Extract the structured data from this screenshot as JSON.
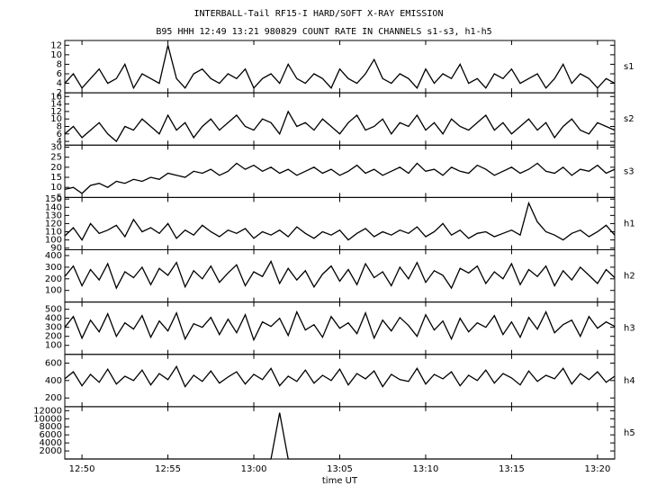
{
  "chart_data": [
    {
      "type": "line",
      "title": "INTERBALL-Tail RF15-I HARD/SOFT X-RAY EMISSION",
      "subtitle": "B95 HHH 12:49 13:21 980829  COUNT RATE IN CHANNELS s1-s3, h1-h5",
      "label": "s1",
      "color": "#000000",
      "x": [
        49,
        49.5,
        50,
        50.5,
        51,
        51.5,
        52,
        52.5,
        53,
        53.5,
        54,
        54.5,
        55,
        55.5,
        56,
        56.5,
        57,
        57.5,
        58,
        58.5,
        59,
        59.5,
        60,
        60.5,
        61,
        61.5,
        62,
        62.5,
        63,
        63.5,
        64,
        64.5,
        65,
        65.5,
        66,
        66.5,
        67,
        67.5,
        68,
        68.5,
        69,
        69.5,
        70,
        70.5,
        71,
        71.5,
        72,
        72.5,
        73,
        73.5,
        74,
        74.5,
        75,
        75.5,
        76,
        76.5,
        77,
        77.5,
        78,
        78.5,
        79,
        79.5,
        80,
        80.5,
        81
      ],
      "values": [
        4,
        6,
        3,
        5,
        7,
        4,
        5,
        8,
        3,
        6,
        5,
        4,
        12,
        5,
        3,
        6,
        7,
        5,
        4,
        6,
        5,
        7,
        3,
        5,
        6,
        4,
        8,
        5,
        4,
        6,
        5,
        3,
        7,
        5,
        4,
        6,
        9,
        5,
        4,
        6,
        5,
        3,
        7,
        4,
        6,
        5,
        8,
        4,
        5,
        3,
        6,
        5,
        7,
        4,
        5,
        6,
        3,
        5,
        8,
        4,
        6,
        5,
        3,
        5,
        4
      ],
      "xlim": [
        49,
        81
      ],
      "ylim": [
        2,
        13
      ],
      "yticks": [
        2,
        4,
        6,
        8,
        10,
        12
      ]
    },
    {
      "type": "line",
      "label": "s2",
      "color": "#000000",
      "x": [
        49,
        49.5,
        50,
        50.5,
        51,
        51.5,
        52,
        52.5,
        53,
        53.5,
        54,
        54.5,
        55,
        55.5,
        56,
        56.5,
        57,
        57.5,
        58,
        58.5,
        59,
        59.5,
        60,
        60.5,
        61,
        61.5,
        62,
        62.5,
        63,
        63.5,
        64,
        64.5,
        65,
        65.5,
        66,
        66.5,
        67,
        67.5,
        68,
        68.5,
        69,
        69.5,
        70,
        70.5,
        71,
        71.5,
        72,
        72.5,
        73,
        73.5,
        74,
        74.5,
        75,
        75.5,
        76,
        76.5,
        77,
        77.5,
        78,
        78.5,
        79,
        79.5,
        80,
        80.5,
        81
      ],
      "values": [
        6,
        8,
        5,
        7,
        9,
        6,
        4,
        8,
        7,
        10,
        8,
        6,
        11,
        7,
        9,
        5,
        8,
        10,
        7,
        9,
        11,
        8,
        7,
        10,
        9,
        6,
        12,
        8,
        9,
        7,
        10,
        8,
        6,
        9,
        11,
        7,
        8,
        10,
        6,
        9,
        8,
        11,
        7,
        9,
        6,
        10,
        8,
        7,
        9,
        11,
        7,
        9,
        6,
        8,
        10,
        7,
        9,
        5,
        8,
        10,
        7,
        6,
        9,
        8,
        7
      ],
      "xlim": [
        49,
        81
      ],
      "ylim": [
        3,
        17
      ],
      "yticks": [
        4,
        6,
        8,
        10,
        12,
        14,
        16
      ]
    },
    {
      "type": "line",
      "label": "s3",
      "color": "#000000",
      "x": [
        49,
        49.5,
        50,
        50.5,
        51,
        51.5,
        52,
        52.5,
        53,
        53.5,
        54,
        54.5,
        55,
        55.5,
        56,
        56.5,
        57,
        57.5,
        58,
        58.5,
        59,
        59.5,
        60,
        60.5,
        61,
        61.5,
        62,
        62.5,
        63,
        63.5,
        64,
        64.5,
        65,
        65.5,
        66,
        66.5,
        67,
        67.5,
        68,
        68.5,
        69,
        69.5,
        70,
        70.5,
        71,
        71.5,
        72,
        72.5,
        73,
        73.5,
        74,
        74.5,
        75,
        75.5,
        76,
        76.5,
        77,
        77.5,
        78,
        78.5,
        79,
        79.5,
        80,
        80.5,
        81
      ],
      "values": [
        9,
        10,
        7,
        11,
        12,
        10,
        13,
        12,
        14,
        13,
        15,
        14,
        17,
        16,
        15,
        18,
        17,
        19,
        16,
        18,
        22,
        19,
        21,
        18,
        20,
        17,
        19,
        16,
        18,
        20,
        17,
        19,
        16,
        18,
        21,
        17,
        19,
        16,
        18,
        20,
        17,
        22,
        18,
        19,
        16,
        20,
        18,
        17,
        21,
        19,
        16,
        18,
        20,
        17,
        19,
        22,
        18,
        17,
        20,
        16,
        19,
        18,
        21,
        17,
        19
      ],
      "xlim": [
        49,
        81
      ],
      "ylim": [
        5,
        31
      ],
      "yticks": [
        5,
        10,
        15,
        20,
        25,
        30
      ]
    },
    {
      "type": "line",
      "label": "h1",
      "color": "#000000",
      "x": [
        49,
        49.5,
        50,
        50.5,
        51,
        51.5,
        52,
        52.5,
        53,
        53.5,
        54,
        54.5,
        55,
        55.5,
        56,
        56.5,
        57,
        57.5,
        58,
        58.5,
        59,
        59.5,
        60,
        60.5,
        61,
        61.5,
        62,
        62.5,
        63,
        63.5,
        64,
        64.5,
        65,
        65.5,
        66,
        66.5,
        67,
        67.5,
        68,
        68.5,
        69,
        69.5,
        70,
        70.5,
        71,
        71.5,
        72,
        72.5,
        73,
        73.5,
        74,
        74.5,
        75,
        75.5,
        76,
        76.5,
        77,
        77.5,
        78,
        78.5,
        79,
        79.5,
        80,
        80.5,
        81
      ],
      "values": [
        105,
        115,
        100,
        120,
        108,
        112,
        118,
        104,
        125,
        110,
        115,
        108,
        120,
        102,
        112,
        106,
        118,
        110,
        104,
        112,
        108,
        114,
        102,
        110,
        106,
        112,
        104,
        116,
        108,
        102,
        110,
        106,
        112,
        100,
        108,
        114,
        104,
        110,
        106,
        112,
        108,
        116,
        104,
        110,
        120,
        106,
        112,
        102,
        108,
        110,
        104,
        108,
        112,
        106,
        145,
        122,
        110,
        106,
        100,
        108,
        112,
        104,
        110,
        118,
        106
      ],
      "xlim": [
        49,
        81
      ],
      "ylim": [
        88,
        152
      ],
      "yticks": [
        90,
        100,
        110,
        120,
        130,
        140,
        150
      ]
    },
    {
      "type": "line",
      "label": "h2",
      "color": "#000000",
      "x": [
        49,
        49.5,
        50,
        50.5,
        51,
        51.5,
        52,
        52.5,
        53,
        53.5,
        54,
        54.5,
        55,
        55.5,
        56,
        56.5,
        57,
        57.5,
        58,
        58.5,
        59,
        59.5,
        60,
        60.5,
        61,
        61.5,
        62,
        62.5,
        63,
        63.5,
        64,
        64.5,
        65,
        65.5,
        66,
        66.5,
        67,
        67.5,
        68,
        68.5,
        69,
        69.5,
        70,
        70.5,
        71,
        71.5,
        72,
        72.5,
        73,
        73.5,
        74,
        74.5,
        75,
        75.5,
        76,
        76.5,
        77,
        77.5,
        78,
        78.5,
        79,
        79.5,
        80,
        80.5,
        81
      ],
      "values": [
        220,
        310,
        140,
        280,
        190,
        330,
        120,
        260,
        210,
        300,
        150,
        290,
        230,
        340,
        130,
        270,
        200,
        310,
        170,
        250,
        320,
        140,
        260,
        220,
        350,
        160,
        290,
        190,
        270,
        130,
        240,
        310,
        180,
        280,
        150,
        330,
        210,
        260,
        140,
        300,
        200,
        340,
        170,
        270,
        230,
        120,
        290,
        250,
        310,
        160,
        260,
        200,
        330,
        150,
        280,
        220,
        310,
        140,
        270,
        190,
        300,
        230,
        160,
        280,
        210
      ],
      "xlim": [
        49,
        81
      ],
      "ylim": [
        0,
        450
      ],
      "yticks": [
        100,
        200,
        300,
        400
      ]
    },
    {
      "type": "line",
      "label": "h3",
      "color": "#000000",
      "x": [
        49,
        49.5,
        50,
        50.5,
        51,
        51.5,
        52,
        52.5,
        53,
        53.5,
        54,
        54.5,
        55,
        55.5,
        56,
        56.5,
        57,
        57.5,
        58,
        58.5,
        59,
        59.5,
        60,
        60.5,
        61,
        61.5,
        62,
        62.5,
        63,
        63.5,
        64,
        64.5,
        65,
        65.5,
        66,
        66.5,
        67,
        67.5,
        68,
        68.5,
        69,
        69.5,
        70,
        70.5,
        71,
        71.5,
        72,
        72.5,
        73,
        73.5,
        74,
        74.5,
        75,
        75.5,
        76,
        76.5,
        77,
        77.5,
        78,
        78.5,
        79,
        79.5,
        80,
        80.5,
        81
      ],
      "values": [
        300,
        420,
        180,
        380,
        250,
        450,
        200,
        350,
        280,
        430,
        190,
        370,
        260,
        460,
        170,
        340,
        300,
        410,
        220,
        390,
        240,
        440,
        160,
        360,
        310,
        400,
        210,
        470,
        270,
        330,
        190,
        420,
        290,
        350,
        230,
        460,
        180,
        380,
        260,
        410,
        320,
        200,
        440,
        270,
        370,
        170,
        400,
        250,
        350,
        300,
        430,
        220,
        360,
        190,
        410,
        280,
        470,
        240,
        330,
        380,
        200,
        420,
        290,
        360,
        310
      ],
      "xlim": [
        49,
        81
      ],
      "ylim": [
        0,
        580
      ],
      "yticks": [
        100,
        200,
        300,
        400,
        500
      ]
    },
    {
      "type": "line",
      "label": "h4",
      "color": "#000000",
      "x": [
        49,
        49.5,
        50,
        50.5,
        51,
        51.5,
        52,
        52.5,
        53,
        53.5,
        54,
        54.5,
        55,
        55.5,
        56,
        56.5,
        57,
        57.5,
        58,
        58.5,
        59,
        59.5,
        60,
        60.5,
        61,
        61.5,
        62,
        62.5,
        63,
        63.5,
        64,
        64.5,
        65,
        65.5,
        66,
        66.5,
        67,
        67.5,
        68,
        68.5,
        69,
        69.5,
        70,
        70.5,
        71,
        71.5,
        72,
        72.5,
        73,
        73.5,
        74,
        74.5,
        75,
        75.5,
        76,
        76.5,
        77,
        77.5,
        78,
        78.5,
        79,
        79.5,
        80,
        80.5,
        81
      ],
      "values": [
        420,
        500,
        340,
        470,
        380,
        530,
        360,
        450,
        400,
        520,
        350,
        480,
        410,
        560,
        330,
        460,
        390,
        510,
        370,
        440,
        500,
        360,
        470,
        410,
        540,
        340,
        450,
        390,
        520,
        370,
        460,
        400,
        530,
        350,
        480,
        420,
        510,
        330,
        470,
        410,
        390,
        540,
        360,
        470,
        420,
        500,
        340,
        460,
        400,
        520,
        370,
        480,
        430,
        350,
        510,
        390,
        460,
        420,
        540,
        360,
        480,
        410,
        500,
        380,
        450
      ],
      "xlim": [
        49,
        81
      ],
      "ylim": [
        100,
        700
      ],
      "yticks": [
        200,
        400,
        600
      ]
    },
    {
      "type": "line",
      "label": "h5",
      "color": "#000000",
      "xlabel": "time UT",
      "x": [
        49,
        49.5,
        50,
        50.5,
        51,
        51.5,
        52,
        52.5,
        53,
        53.5,
        54,
        54.5,
        55,
        55.5,
        56,
        56.5,
        57,
        57.5,
        58,
        58.5,
        59,
        59.5,
        60,
        60.5,
        61,
        61.5,
        62,
        62.5,
        63,
        63.5,
        64,
        64.5,
        65,
        65.5,
        66,
        66.5,
        67,
        67.5,
        68,
        68.5,
        69,
        69.5,
        70,
        70.5,
        71,
        71.5,
        72,
        72.5,
        73,
        73.5,
        74,
        74.5,
        75,
        75.5,
        76,
        76.5,
        77,
        77.5,
        78,
        78.5,
        79,
        79.5,
        80,
        80.5,
        81
      ],
      "values": [
        0,
        0,
        0,
        0,
        0,
        0,
        0,
        0,
        0,
        0,
        0,
        0,
        0,
        0,
        0,
        0,
        0,
        0,
        0,
        0,
        0,
        0,
        0,
        0,
        0,
        11500,
        0,
        0,
        0,
        0,
        0,
        0,
        0,
        0,
        0,
        0,
        0,
        0,
        0,
        0,
        0,
        0,
        0,
        0,
        0,
        0,
        0,
        0,
        0,
        0,
        0,
        0,
        0,
        0,
        0,
        0,
        0,
        0,
        0,
        0,
        0,
        0,
        0,
        0,
        0
      ],
      "xlim": [
        49,
        81
      ],
      "ylim": [
        0,
        13000
      ],
      "yticks": [
        2000,
        4000,
        6000,
        8000,
        10000,
        12000
      ],
      "xticks": [
        {
          "value": 50,
          "label": "12:50"
        },
        {
          "value": 55,
          "label": "12:55"
        },
        {
          "value": 60,
          "label": "13:00"
        },
        {
          "value": 65,
          "label": "13:05"
        },
        {
          "value": 70,
          "label": "13:10"
        },
        {
          "value": 75,
          "label": "13:15"
        },
        {
          "value": 80,
          "label": "13:20"
        }
      ]
    }
  ]
}
